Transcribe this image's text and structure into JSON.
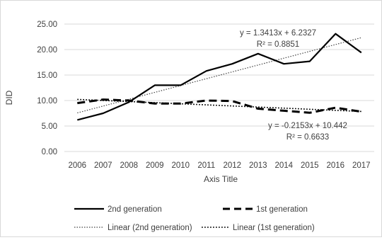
{
  "chart_data": {
    "type": "line",
    "title": "",
    "xlabel": "Axis Title",
    "ylabel": "DID",
    "ylim": [
      0,
      25
    ],
    "yticks": [
      "0.00",
      "5.00",
      "10.00",
      "15.00",
      "20.00",
      "25.00"
    ],
    "y_tick_values": [
      0,
      5,
      10,
      15,
      20,
      25
    ],
    "grid": true,
    "legend_position": "bottom",
    "categories": [
      "2006",
      "2007",
      "2008",
      "2009",
      "2010",
      "2011",
      "2012",
      "2013",
      "2014",
      "2015",
      "2016",
      "2017"
    ],
    "series": [
      {
        "name": "2nd generation",
        "values": [
          6.2,
          7.5,
          9.7,
          13.0,
          13.0,
          15.8,
          17.2,
          19.2,
          17.2,
          17.7,
          23.1,
          19.4
        ],
        "color": "#000000",
        "style": "solid"
      },
      {
        "name": "1st generation",
        "values": [
          9.5,
          10.2,
          10.0,
          9.4,
          9.4,
          10.0,
          9.9,
          8.4,
          8.0,
          7.6,
          8.6,
          7.8
        ],
        "color": "#000000",
        "style": "dashed"
      }
    ],
    "trendlines": [
      {
        "name": "Linear (2nd generation)",
        "slope": 1.3413,
        "intercept": 6.2327,
        "equation": "y = 1.3413x + 6.2327",
        "r2": "R² = 0.8851",
        "style": "dotted-fine"
      },
      {
        "name": "Linear (1st generation)",
        "slope": -0.2153,
        "intercept": 10.442,
        "equation": "y = -0.2153x + 10.442",
        "r2": "R² = 0.6633",
        "style": "dotted"
      }
    ]
  }
}
